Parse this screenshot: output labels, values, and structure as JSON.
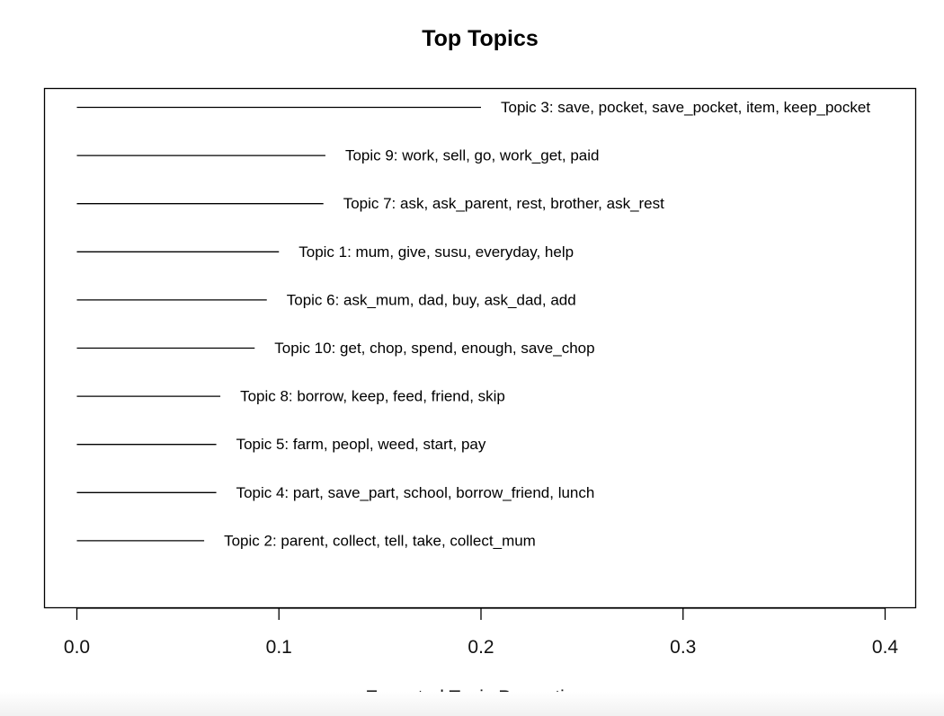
{
  "chart_data": {
    "type": "bar",
    "orientation": "horizontal",
    "bar_style": "line segments",
    "title": "Top Topics",
    "xlabel": "Expected Topic Proportions",
    "ylabel": "",
    "xlim": [
      0,
      0.4
    ],
    "x_ticks": [
      0.0,
      0.1,
      0.2,
      0.3,
      0.4
    ],
    "x_tick_labels": [
      "0.0",
      "0.1",
      "0.2",
      "0.3",
      "0.4"
    ],
    "grid": false,
    "legend": "none",
    "categories": [
      "Topic 3: save, pocket, save_pocket, item, keep_pocket",
      "Topic 9: work, sell, go, work_get, paid",
      "Topic 7: ask, ask_parent, rest, brother, ask_rest",
      "Topic 1: mum, give, susu, everyday, help",
      "Topic 6: ask_mum, dad, buy, ask_dad, add",
      "Topic 10: get, chop, spend, enough, save_chop",
      "Topic 8: borrow, keep, feed, friend, skip",
      "Topic 5: farm, peopl, weed, start, pay",
      "Topic 4: part, save_part, school, borrow_friend, lunch",
      "Topic 2: parent, collect, tell, take, collect_mum"
    ],
    "values": [
      0.2,
      0.123,
      0.122,
      0.1,
      0.094,
      0.088,
      0.071,
      0.069,
      0.069,
      0.063
    ],
    "line_color": "#000000",
    "background_color": "#ffffff"
  }
}
